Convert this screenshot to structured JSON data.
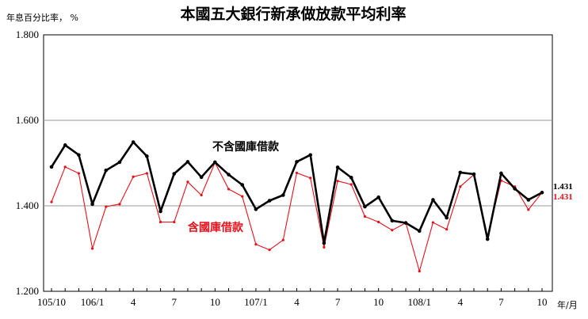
{
  "chart_data": {
    "type": "line",
    "title": "本國五大銀行新承做放款平均利率",
    "ylabel": "年息百分比率， %",
    "xlabel": "年/月",
    "ylim": [
      1.2,
      1.8
    ],
    "yticks": [
      "1.200",
      "1.400",
      "1.600",
      "1.800"
    ],
    "ytick_values": [
      1.2,
      1.4,
      1.6,
      1.8
    ],
    "grid": "horizontal",
    "x": [
      "105/10",
      "105/11",
      "105/12",
      "106/1",
      "106/2",
      "106/3",
      "106/4",
      "106/5",
      "106/6",
      "106/7",
      "106/8",
      "106/9",
      "106/10",
      "106/11",
      "106/12",
      "107/1",
      "107/2",
      "107/3",
      "107/4",
      "107/5",
      "107/6",
      "107/7",
      "107/8",
      "107/9",
      "107/10",
      "107/11",
      "107/12",
      "108/1",
      "108/2",
      "108/3",
      "108/4",
      "108/5",
      "108/6",
      "108/7",
      "108/8",
      "108/9",
      "108/10"
    ],
    "xtick_labels": [
      {
        "index": 0,
        "label": "105/10"
      },
      {
        "index": 3,
        "label": "106/1"
      },
      {
        "index": 6,
        "label": "4"
      },
      {
        "index": 9,
        "label": "7"
      },
      {
        "index": 12,
        "label": "10"
      },
      {
        "index": 15,
        "label": "107/1"
      },
      {
        "index": 18,
        "label": "4"
      },
      {
        "index": 21,
        "label": "7"
      },
      {
        "index": 24,
        "label": "10"
      },
      {
        "index": 27,
        "label": "108/1"
      },
      {
        "index": 30,
        "label": "4"
      },
      {
        "index": 33,
        "label": "7"
      },
      {
        "index": 36,
        "label": "10"
      }
    ],
    "series": [
      {
        "name": "不含國庫借款",
        "color": "#000000",
        "values": [
          1.491,
          1.542,
          1.519,
          1.404,
          1.483,
          1.502,
          1.549,
          1.516,
          1.387,
          1.475,
          1.503,
          1.467,
          1.502,
          1.473,
          1.449,
          1.392,
          1.412,
          1.425,
          1.503,
          1.519,
          1.313,
          1.49,
          1.466,
          1.398,
          1.42,
          1.365,
          1.36,
          1.341,
          1.414,
          1.372,
          1.478,
          1.474,
          1.322,
          1.476,
          1.44,
          1.414,
          1.431
        ],
        "end_label": "1.431"
      },
      {
        "name": "含國庫借款",
        "color": "#e8101a",
        "values": [
          1.409,
          1.491,
          1.476,
          1.3,
          1.398,
          1.404,
          1.468,
          1.476,
          1.362,
          1.362,
          1.456,
          1.425,
          1.501,
          1.439,
          1.422,
          1.31,
          1.297,
          1.32,
          1.477,
          1.465,
          1.303,
          1.458,
          1.45,
          1.375,
          1.362,
          1.343,
          1.36,
          1.247,
          1.361,
          1.345,
          1.445,
          1.473,
          1.328,
          1.459,
          1.445,
          1.391,
          1.431
        ],
        "end_label": "1.431"
      }
    ]
  }
}
